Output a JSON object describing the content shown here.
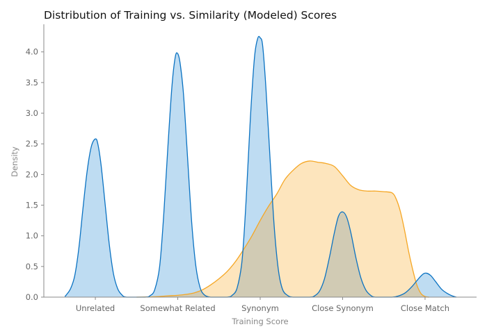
{
  "chart_data": {
    "type": "area",
    "title": "Distribution of Training vs. Similarity (Modeled) Scores",
    "xlabel": "Training Score",
    "ylabel": "Density",
    "categories": [
      "Unrelated",
      "Somewhat Related",
      "Synonym",
      "Close Synonym",
      "Close Match"
    ],
    "category_positions": [
      1,
      2,
      3,
      4,
      5
    ],
    "xlim": [
      0.375,
      5.625
    ],
    "ylim": [
      0,
      4.45
    ],
    "yticks": [
      0.0,
      0.5,
      1.0,
      1.5,
      2.0,
      2.5,
      3.0,
      3.5,
      4.0
    ],
    "grid": false,
    "legend": "none",
    "colors": {
      "training_line": "#0a72c2",
      "training_fill": "#bedcf2",
      "similarity_line": "#f5a623",
      "similarity_fill": "#fde5bd",
      "overlap_fill": "#d1cbb4",
      "overlap_line": "#3f7a8c"
    },
    "series": [
      {
        "points": [
          [
            0.63,
            0.01
          ],
          [
            0.65,
            0.04
          ],
          [
            0.7,
            0.14
          ],
          [
            0.75,
            0.35
          ],
          [
            0.8,
            0.8
          ],
          [
            0.85,
            1.45
          ],
          [
            0.9,
            2.05
          ],
          [
            0.95,
            2.45
          ],
          [
            1.0,
            2.58
          ],
          [
            1.03,
            2.5
          ],
          [
            1.07,
            2.15
          ],
          [
            1.12,
            1.5
          ],
          [
            1.17,
            0.85
          ],
          [
            1.22,
            0.38
          ],
          [
            1.27,
            0.14
          ],
          [
            1.32,
            0.04
          ],
          [
            1.38,
            0.0
          ],
          [
            1.6,
            0.0
          ],
          [
            1.66,
            0.02
          ],
          [
            1.72,
            0.12
          ],
          [
            1.78,
            0.5
          ],
          [
            1.83,
            1.35
          ],
          [
            1.88,
            2.45
          ],
          [
            1.93,
            3.45
          ],
          [
            1.97,
            3.92
          ],
          [
            2.0,
            3.97
          ],
          [
            2.03,
            3.8
          ],
          [
            2.07,
            3.3
          ],
          [
            2.12,
            2.25
          ],
          [
            2.17,
            1.2
          ],
          [
            2.22,
            0.5
          ],
          [
            2.27,
            0.16
          ],
          [
            2.32,
            0.04
          ],
          [
            2.4,
            0.0
          ],
          [
            2.6,
            0.0
          ],
          [
            2.66,
            0.03
          ],
          [
            2.72,
            0.15
          ],
          [
            2.78,
            0.6
          ],
          [
            2.83,
            1.6
          ],
          [
            2.88,
            2.9
          ],
          [
            2.93,
            3.9
          ],
          [
            2.97,
            4.22
          ],
          [
            3.0,
            4.23
          ],
          [
            3.03,
            4.1
          ],
          [
            3.07,
            3.4
          ],
          [
            3.12,
            2.25
          ],
          [
            3.17,
            1.15
          ],
          [
            3.22,
            0.45
          ],
          [
            3.27,
            0.13
          ],
          [
            3.33,
            0.03
          ],
          [
            3.4,
            0.0
          ],
          [
            3.6,
            0.0
          ],
          [
            3.66,
            0.02
          ],
          [
            3.72,
            0.1
          ],
          [
            3.78,
            0.3
          ],
          [
            3.84,
            0.65
          ],
          [
            3.9,
            1.05
          ],
          [
            3.95,
            1.32
          ],
          [
            4.0,
            1.39
          ],
          [
            4.05,
            1.3
          ],
          [
            4.1,
            1.05
          ],
          [
            4.16,
            0.65
          ],
          [
            4.22,
            0.32
          ],
          [
            4.28,
            0.12
          ],
          [
            4.34,
            0.03
          ],
          [
            4.4,
            0.0
          ],
          [
            4.6,
            0.0
          ],
          [
            4.68,
            0.02
          ],
          [
            4.76,
            0.07
          ],
          [
            4.84,
            0.17
          ],
          [
            4.92,
            0.3
          ],
          [
            4.98,
            0.38
          ],
          [
            5.02,
            0.39
          ],
          [
            5.07,
            0.35
          ],
          [
            5.13,
            0.25
          ],
          [
            5.2,
            0.13
          ],
          [
            5.27,
            0.06
          ],
          [
            5.33,
            0.02
          ],
          [
            5.38,
            0.0
          ]
        ]
      },
      {
        "points": [
          [
            1.5,
            0.0
          ],
          [
            1.6,
            0.002
          ],
          [
            1.7,
            0.006
          ],
          [
            1.8,
            0.013
          ],
          [
            1.9,
            0.022
          ],
          [
            2.0,
            0.03
          ],
          [
            2.1,
            0.045
          ],
          [
            2.2,
            0.07
          ],
          [
            2.3,
            0.12
          ],
          [
            2.4,
            0.2
          ],
          [
            2.5,
            0.3
          ],
          [
            2.6,
            0.42
          ],
          [
            2.7,
            0.58
          ],
          [
            2.8,
            0.78
          ],
          [
            2.9,
            1.0
          ],
          [
            3.0,
            1.25
          ],
          [
            3.1,
            1.48
          ],
          [
            3.2,
            1.68
          ],
          [
            3.3,
            1.92
          ],
          [
            3.4,
            2.07
          ],
          [
            3.5,
            2.18
          ],
          [
            3.6,
            2.22
          ],
          [
            3.7,
            2.2
          ],
          [
            3.8,
            2.18
          ],
          [
            3.9,
            2.13
          ],
          [
            4.0,
            1.98
          ],
          [
            4.1,
            1.82
          ],
          [
            4.2,
            1.75
          ],
          [
            4.3,
            1.73
          ],
          [
            4.4,
            1.73
          ],
          [
            4.5,
            1.72
          ],
          [
            4.6,
            1.7
          ],
          [
            4.65,
            1.6
          ],
          [
            4.7,
            1.4
          ],
          [
            4.75,
            1.1
          ],
          [
            4.8,
            0.75
          ],
          [
            4.85,
            0.45
          ],
          [
            4.9,
            0.2
          ],
          [
            4.95,
            0.06
          ],
          [
            5.0,
            0.01
          ],
          [
            5.05,
            0.0
          ]
        ]
      }
    ]
  }
}
